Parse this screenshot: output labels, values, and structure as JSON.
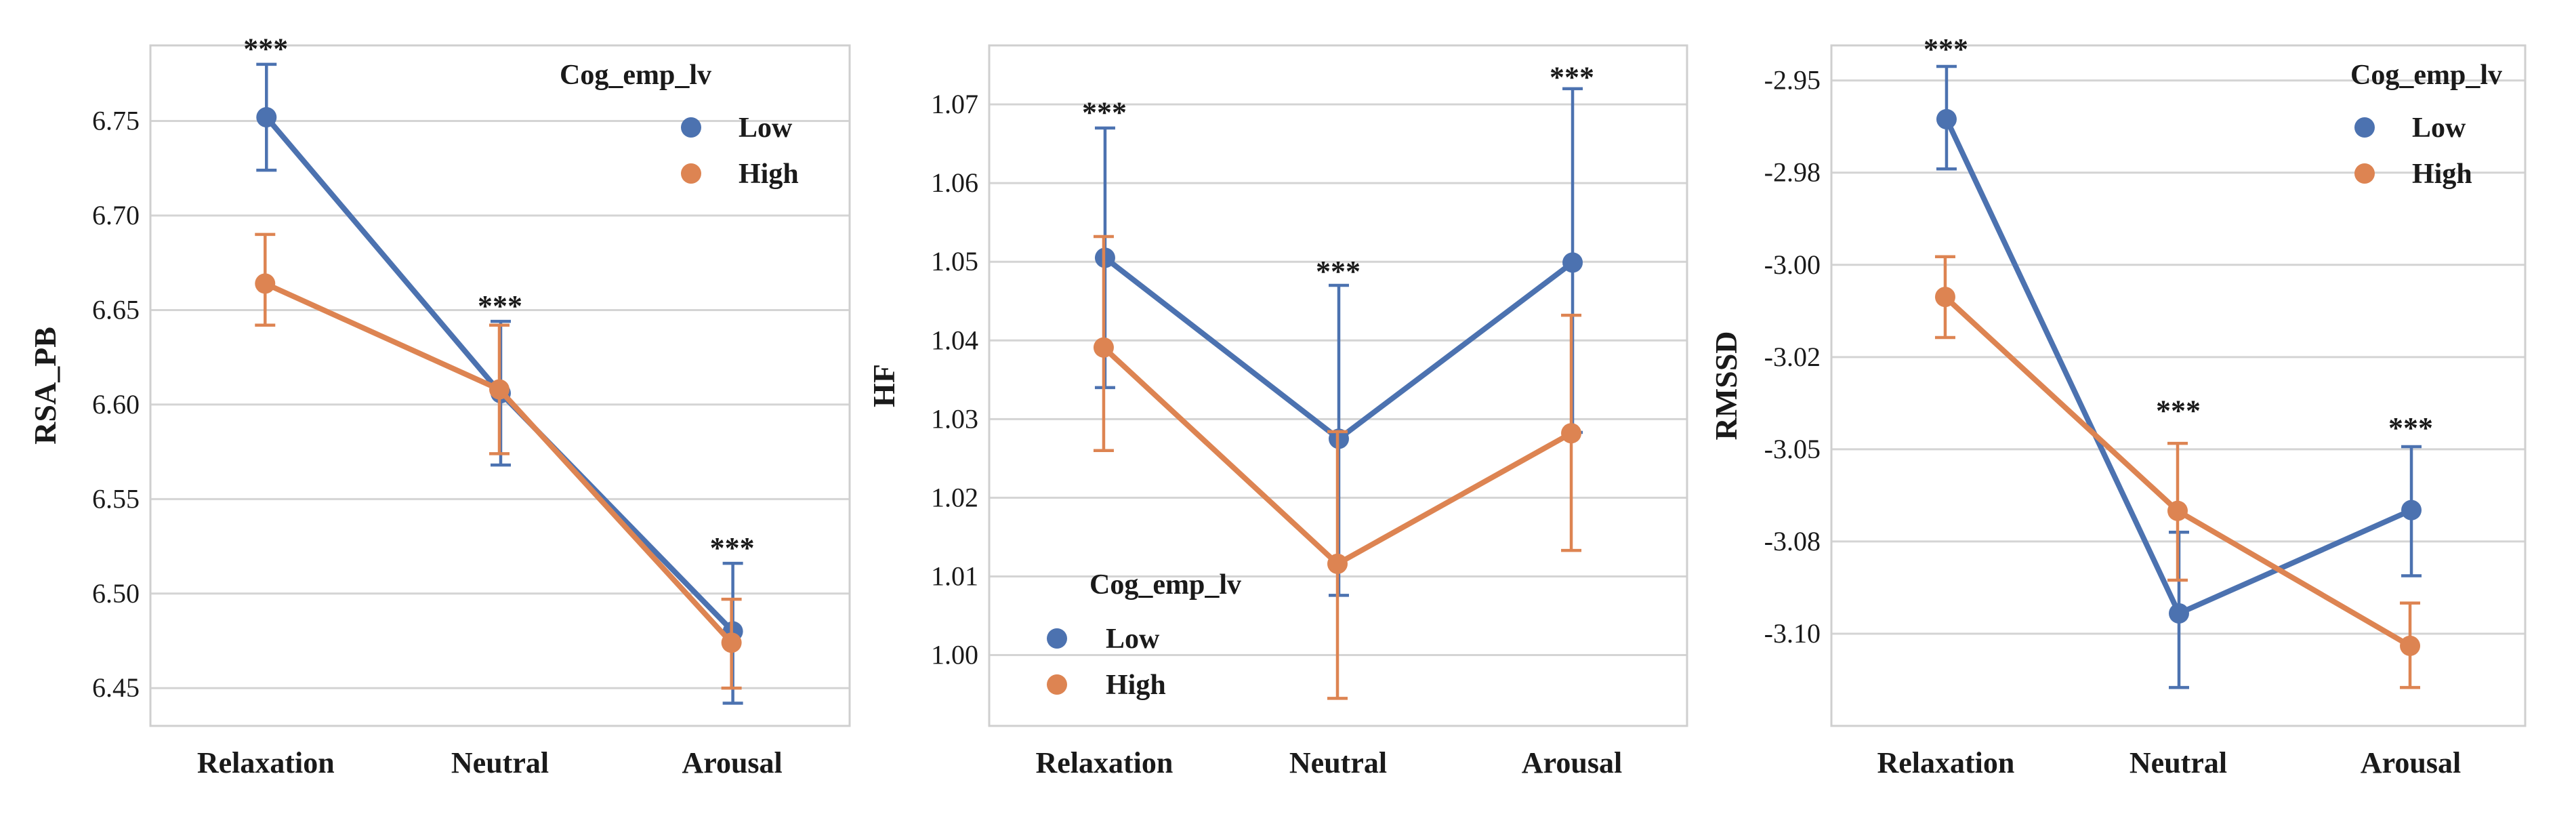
{
  "chart_data": [
    {
      "type": "line",
      "title": "",
      "xlabel": "",
      "ylabel": "RSA_PB",
      "categories": [
        "Relaxation",
        "Neutral",
        "Arousal"
      ],
      "ylim": [
        6.43,
        6.79
      ],
      "yticks": [
        6.45,
        6.5,
        6.55,
        6.6,
        6.65,
        6.7,
        6.75
      ],
      "ytick_labels": [
        "6.45",
        "6.50",
        "6.55",
        "6.60",
        "6.65",
        "6.70",
        "6.75"
      ],
      "grid": true,
      "legend": {
        "title": "Cog_emp_lv",
        "position": "top-right"
      },
      "series": [
        {
          "name": "Low",
          "color": "#4c72b0",
          "values": [
            6.752,
            6.606,
            6.48
          ],
          "ci_low": [
            6.724,
            6.568,
            6.442
          ],
          "ci_high": [
            6.78,
            6.644,
            6.516
          ]
        },
        {
          "name": "High",
          "color": "#dd8452",
          "values": [
            6.664,
            6.608,
            6.474
          ],
          "ci_low": [
            6.642,
            6.574,
            6.45
          ],
          "ci_high": [
            6.69,
            6.642,
            6.497
          ]
        }
      ],
      "annotations": [
        {
          "category": "Relaxation",
          "text": "***",
          "y": 6.783
        },
        {
          "category": "Neutral",
          "text": "***",
          "y": 6.647
        },
        {
          "category": "Arousal",
          "text": "***",
          "y": 6.519
        }
      ]
    },
    {
      "type": "line",
      "title": "",
      "xlabel": "",
      "ylabel": "HF",
      "categories": [
        "Relaxation",
        "Neutral",
        "Arousal"
      ],
      "ylim": [
        0.991,
        1.0775
      ],
      "yticks": [
        1.0,
        1.01,
        1.02,
        1.03,
        1.04,
        1.05,
        1.06,
        1.07
      ],
      "ytick_labels": [
        "1.00",
        "1.01",
        "1.02",
        "1.03",
        "1.04",
        "1.05",
        "1.06",
        "1.07"
      ],
      "grid": true,
      "legend": {
        "title": "Cog_emp_lv",
        "position": "bottom-left"
      },
      "series": [
        {
          "name": "Low",
          "color": "#4c72b0",
          "values": [
            1.0505,
            1.0275,
            1.0499
          ],
          "ci_low": [
            1.034,
            1.0076,
            1.0283
          ],
          "ci_high": [
            1.067,
            1.047,
            1.072
          ]
        },
        {
          "name": "High",
          "color": "#dd8452",
          "values": [
            1.0391,
            1.0116,
            1.0282
          ],
          "ci_low": [
            1.026,
            0.9945,
            1.0133
          ],
          "ci_high": [
            1.0532,
            1.0284,
            1.0432
          ]
        }
      ],
      "annotations": [
        {
          "category": "Relaxation",
          "text": "***",
          "y": 1.0677
        },
        {
          "category": "Neutral",
          "text": "***",
          "y": 1.0475
        },
        {
          "category": "Arousal",
          "text": "***",
          "y": 1.0722
        }
      ]
    },
    {
      "type": "line",
      "title": "",
      "xlabel": "",
      "ylabel": "RMSSD",
      "categories": [
        "Relaxation",
        "Neutral",
        "Arousal"
      ],
      "ylim": [
        -3.125,
        -2.9405
      ],
      "yticks": [
        -2.95,
        -2.975,
        -3.0,
        -3.025,
        -3.05,
        -3.075,
        -3.1
      ],
      "ytick_labels": [
        "-2.95",
        "-2.98",
        "-3.00",
        "-3.02",
        "-3.05",
        "-3.08",
        "-3.10"
      ],
      "grid": true,
      "legend": {
        "title": "Cog_emp_lv",
        "position": "top-right"
      },
      "series": [
        {
          "name": "Low",
          "color": "#4c72b0",
          "values": [
            -2.9605,
            -3.0945,
            -3.0665
          ],
          "ci_low": [
            -2.974,
            -3.1146,
            -3.0843
          ],
          "ci_high": [
            -2.9462,
            -3.0725,
            -3.0493
          ]
        },
        {
          "name": "High",
          "color": "#dd8452",
          "values": [
            -3.0087,
            -3.0667,
            -3.1033
          ],
          "ci_low": [
            -3.0197,
            -3.0855,
            -3.1146
          ],
          "ci_high": [
            -2.9978,
            -3.0484,
            -3.0917
          ]
        }
      ],
      "annotations": [
        {
          "category": "Relaxation",
          "text": "***",
          "y": -2.9442
        },
        {
          "category": "Neutral",
          "text": "***",
          "y": -3.0422
        },
        {
          "category": "Arousal",
          "text": "***",
          "y": -3.0469
        }
      ]
    }
  ]
}
